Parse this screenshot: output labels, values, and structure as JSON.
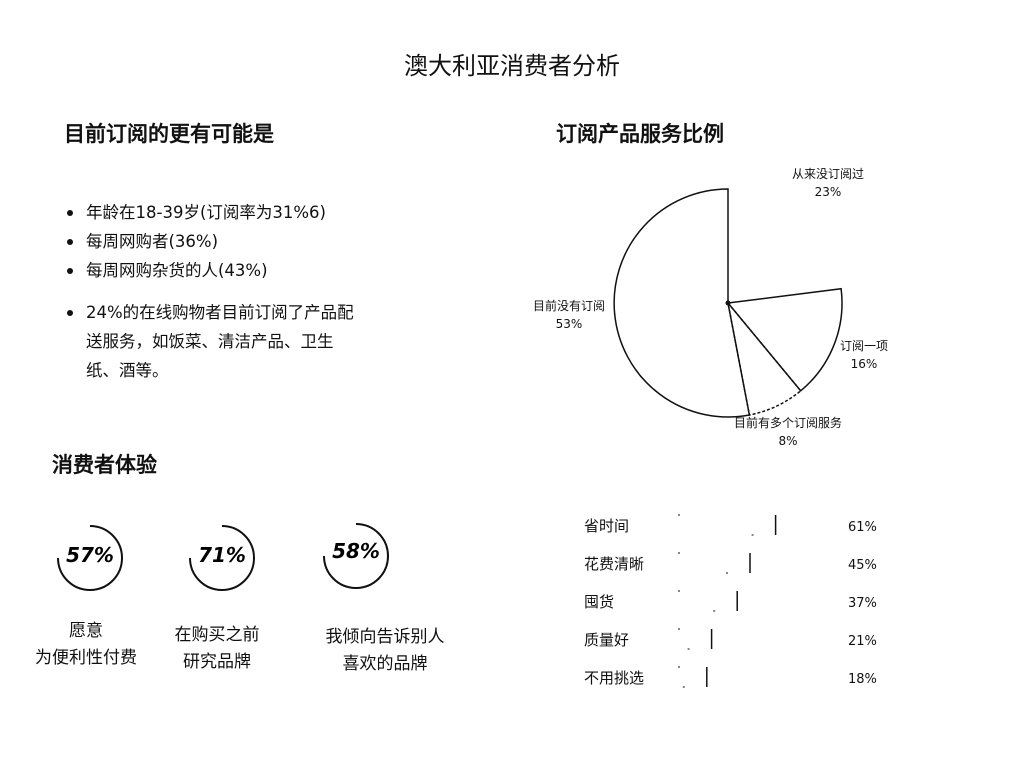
{
  "title": "澳大利亚消费者分析",
  "subscribe_section": {
    "heading": "目前订阅的更有可能是",
    "bullets": [
      "年龄在18-39岁(订阅率为31%6)",
      "每周网购者(36%)",
      "每周网购杂货的人(43%)"
    ],
    "note_lines": [
      "24%的在线购物者目前订阅了产品配",
      "送服务，如饭菜、清洁产品、卫生",
      "纸、酒等。"
    ]
  },
  "pie_section": {
    "heading": "订阅产品服务比例"
  },
  "experience_section": {
    "heading": "消费者体验",
    "stats": [
      {
        "value": "57%",
        "caption_lines": [
          "愿意",
          "为便利性付费"
        ]
      },
      {
        "value": "71%",
        "caption_lines": [
          "在购买之前",
          "研究品牌"
        ]
      },
      {
        "value": "58%",
        "caption_lines": [
          "我倾向告诉别人",
          "喜欢的品牌"
        ]
      }
    ]
  },
  "chart_data": [
    {
      "type": "pie",
      "title": "订阅产品服务比例",
      "slices": [
        {
          "label": "从来没订阅过",
          "value": 23,
          "value_label": "23%"
        },
        {
          "label": "订阅一项",
          "value": 16,
          "value_label": "16%"
        },
        {
          "label": "目前有多个订阅服务",
          "value": 8,
          "value_label": "8%"
        },
        {
          "label": "目前没有订阅",
          "value": 53,
          "value_label": "53%"
        }
      ]
    },
    {
      "type": "bar",
      "orientation": "horizontal",
      "categories": [
        "省时间",
        "花费清晰",
        "囤货",
        "质量好",
        "不用挑选"
      ],
      "values": [
        61,
        45,
        37,
        21,
        18
      ],
      "value_labels": [
        "61%",
        "45%",
        "37%",
        "21%",
        "18%"
      ]
    }
  ],
  "colors": {
    "ink": "#111111",
    "background": "#ffffff"
  }
}
